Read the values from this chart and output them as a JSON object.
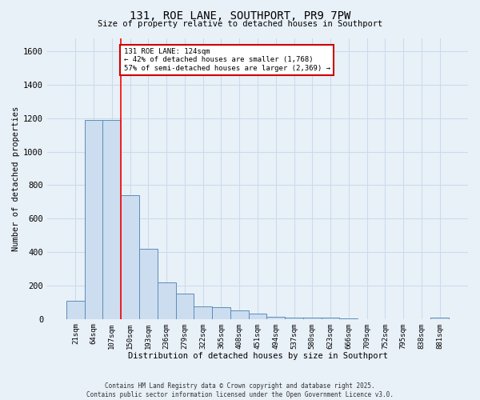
{
  "title": "131, ROE LANE, SOUTHPORT, PR9 7PW",
  "subtitle": "Size of property relative to detached houses in Southport",
  "xlabel": "Distribution of detached houses by size in Southport",
  "ylabel": "Number of detached properties",
  "bar_labels": [
    "21sqm",
    "64sqm",
    "107sqm",
    "150sqm",
    "193sqm",
    "236sqm",
    "279sqm",
    "322sqm",
    "365sqm",
    "408sqm",
    "451sqm",
    "494sqm",
    "537sqm",
    "580sqm",
    "623sqm",
    "666sqm",
    "709sqm",
    "752sqm",
    "795sqm",
    "838sqm",
    "881sqm"
  ],
  "bar_values": [
    110,
    1190,
    1190,
    740,
    420,
    220,
    150,
    75,
    70,
    50,
    30,
    15,
    10,
    10,
    8,
    5,
    0,
    0,
    0,
    0,
    10
  ],
  "bar_color": "#ccddf0",
  "bar_edge_color": "#5b8db8",
  "red_line_x": 2.5,
  "annotation_text": "131 ROE LANE: 124sqm\n← 42% of detached houses are smaller (1,768)\n57% of semi-detached houses are larger (2,369) →",
  "annotation_box_color": "#ffffff",
  "annotation_box_edge": "#cc0000",
  "ylim": [
    0,
    1680
  ],
  "yticks": [
    0,
    200,
    400,
    600,
    800,
    1000,
    1200,
    1400,
    1600
  ],
  "grid_color": "#c8daea",
  "background_color": "#e8f0f8",
  "footer_line1": "Contains HM Land Registry data © Crown copyright and database right 2025.",
  "footer_line2": "Contains public sector information licensed under the Open Government Licence v3.0."
}
